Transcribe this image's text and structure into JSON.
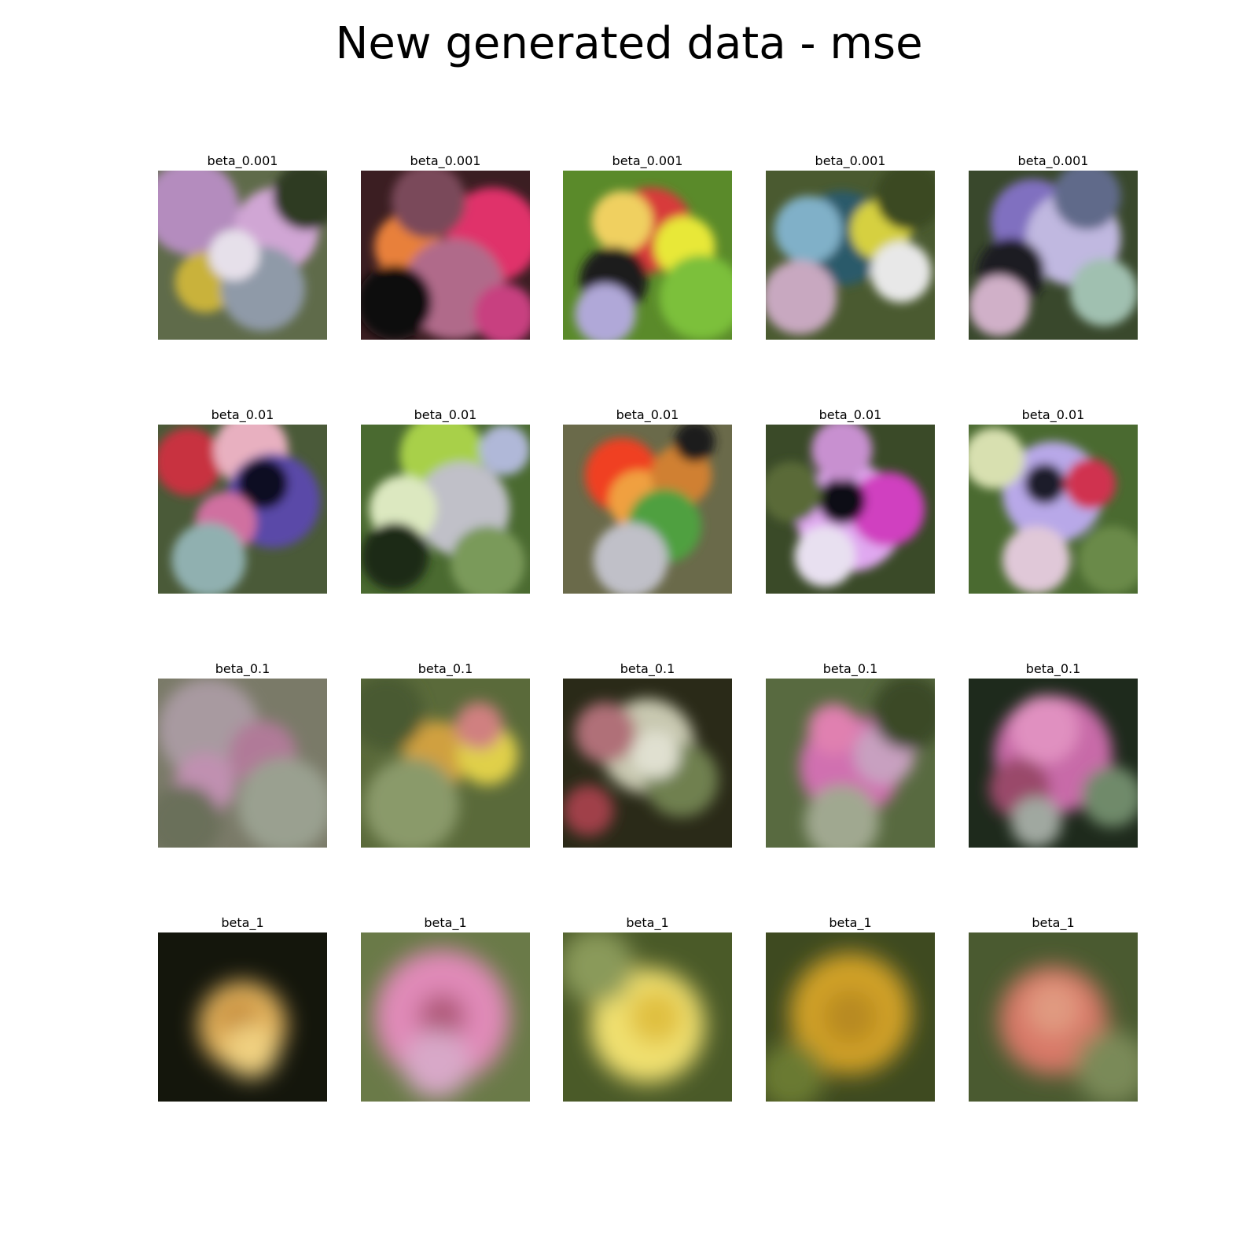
{
  "figure": {
    "title": "New generated data - mse"
  },
  "rows": [
    {
      "label": "beta_0.001",
      "images": [
        {
          "title": "beta_0.001",
          "bg": "#5f6b4a",
          "blobs": [
            [
              "#b48cbe",
              0.2,
              0.22,
              0.28
            ],
            [
              "#d0a6d4",
              0.7,
              0.35,
              0.25
            ],
            [
              "#c9b23a",
              0.28,
              0.66,
              0.18
            ],
            [
              "#8f9aa8",
              0.62,
              0.7,
              0.25
            ],
            [
              "#2f3b22",
              0.88,
              0.15,
              0.2
            ],
            [
              "#e6e0ea",
              0.45,
              0.5,
              0.15
            ]
          ]
        },
        {
          "title": "beta_0.001",
          "bg": "#3b1e22",
          "blobs": [
            [
              "#e0306a",
              0.78,
              0.38,
              0.28
            ],
            [
              "#e8803a",
              0.28,
              0.45,
              0.2
            ],
            [
              "#b06a8a",
              0.55,
              0.7,
              0.3
            ],
            [
              "#0b0b0b",
              0.2,
              0.78,
              0.22
            ],
            [
              "#7a4a5a",
              0.4,
              0.18,
              0.22
            ],
            [
              "#c84080",
              0.85,
              0.85,
              0.18
            ]
          ]
        },
        {
          "title": "beta_0.001",
          "bg": "#5a8a2a",
          "blobs": [
            [
              "#d83a3a",
              0.52,
              0.35,
              0.25
            ],
            [
              "#f0d060",
              0.35,
              0.3,
              0.18
            ],
            [
              "#e8e838",
              0.72,
              0.45,
              0.18
            ],
            [
              "#1a1a1a",
              0.3,
              0.65,
              0.2
            ],
            [
              "#b0a8d8",
              0.25,
              0.85,
              0.18
            ],
            [
              "#7cc03a",
              0.82,
              0.75,
              0.25
            ]
          ]
        },
        {
          "title": "beta_0.001",
          "bg": "#4a5a30",
          "blobs": [
            [
              "#2a5a6a",
              0.45,
              0.4,
              0.28
            ],
            [
              "#80b0c8",
              0.25,
              0.35,
              0.2
            ],
            [
              "#d6d040",
              0.68,
              0.35,
              0.18
            ],
            [
              "#c8a8c0",
              0.2,
              0.75,
              0.22
            ],
            [
              "#e8e8e8",
              0.8,
              0.6,
              0.18
            ],
            [
              "#3a4a22",
              0.85,
              0.15,
              0.2
            ]
          ]
        },
        {
          "title": "beta_0.001",
          "bg": "#39482c",
          "blobs": [
            [
              "#8070c0",
              0.38,
              0.3,
              0.25
            ],
            [
              "#c0b8e0",
              0.62,
              0.4,
              0.28
            ],
            [
              "#1a1a20",
              0.25,
              0.6,
              0.2
            ],
            [
              "#d0b0c8",
              0.18,
              0.8,
              0.18
            ],
            [
              "#a0c0b0",
              0.8,
              0.72,
              0.2
            ],
            [
              "#606a8a",
              0.7,
              0.15,
              0.2
            ]
          ]
        }
      ]
    },
    {
      "label": "beta_0.01",
      "images": [
        {
          "title": "beta_0.01",
          "bg": "#4a5a38",
          "blobs": [
            [
              "#c83040",
              0.18,
              0.22,
              0.2
            ],
            [
              "#e8b0c0",
              0.55,
              0.15,
              0.22
            ],
            [
              "#5a4aa8",
              0.68,
              0.45,
              0.28
            ],
            [
              "#101020",
              0.62,
              0.35,
              0.15
            ],
            [
              "#d070a0",
              0.4,
              0.58,
              0.18
            ],
            [
              "#90b0b0",
              0.3,
              0.8,
              0.22
            ]
          ]
        },
        {
          "title": "beta_0.01",
          "bg": "#4a6a30",
          "blobs": [
            [
              "#a8d048",
              0.48,
              0.18,
              0.25
            ],
            [
              "#c0c0c8",
              0.6,
              0.5,
              0.28
            ],
            [
              "#dce8c0",
              0.25,
              0.5,
              0.2
            ],
            [
              "#1a2a18",
              0.2,
              0.78,
              0.2
            ],
            [
              "#b0b8d8",
              0.85,
              0.15,
              0.15
            ],
            [
              "#7a9a5a",
              0.75,
              0.82,
              0.22
            ]
          ]
        },
        {
          "title": "beta_0.01",
          "bg": "#6a6a4a",
          "blobs": [
            [
              "#f04020",
              0.35,
              0.3,
              0.22
            ],
            [
              "#f0a040",
              0.45,
              0.45,
              0.18
            ],
            [
              "#d08030",
              0.7,
              0.3,
              0.18
            ],
            [
              "#50a040",
              0.6,
              0.6,
              0.22
            ],
            [
              "#c0c0c8",
              0.4,
              0.8,
              0.22
            ],
            [
              "#1a1a1a",
              0.78,
              0.1,
              0.12
            ]
          ]
        },
        {
          "title": "beta_0.01",
          "bg": "#3a4a28",
          "blobs": [
            [
              "#e0a8f0",
              0.5,
              0.55,
              0.32
            ],
            [
              "#d040c0",
              0.72,
              0.5,
              0.22
            ],
            [
              "#101018",
              0.45,
              0.45,
              0.14
            ],
            [
              "#c890d0",
              0.45,
              0.15,
              0.18
            ],
            [
              "#e8e0f0",
              0.35,
              0.78,
              0.18
            ],
            [
              "#5a6a38",
              0.15,
              0.4,
              0.18
            ]
          ]
        },
        {
          "title": "beta_0.01",
          "bg": "#4a6a30",
          "blobs": [
            [
              "#b8a8e8",
              0.5,
              0.4,
              0.3
            ],
            [
              "#d03050",
              0.72,
              0.35,
              0.15
            ],
            [
              "#1a1a2a",
              0.45,
              0.35,
              0.12
            ],
            [
              "#d8e0b0",
              0.15,
              0.2,
              0.18
            ],
            [
              "#e0c8d8",
              0.4,
              0.8,
              0.2
            ],
            [
              "#6a8a48",
              0.85,
              0.8,
              0.2
            ]
          ]
        }
      ]
    },
    {
      "label": "beta_0.1",
      "images": [
        {
          "title": "beta_0.1",
          "bg": "#7a7a68",
          "blobs": [
            [
              "#a89aa0",
              0.3,
              0.3,
              0.3
            ],
            [
              "#b07a98",
              0.62,
              0.45,
              0.2
            ],
            [
              "#c090b0",
              0.28,
              0.62,
              0.18
            ],
            [
              "#9aa090",
              0.75,
              0.75,
              0.28
            ],
            [
              "#6a705a",
              0.15,
              0.85,
              0.22
            ]
          ]
        },
        {
          "title": "beta_0.1",
          "bg": "#5a6a3a",
          "blobs": [
            [
              "#d0a040",
              0.45,
              0.45,
              0.2
            ],
            [
              "#e0d048",
              0.75,
              0.45,
              0.18
            ],
            [
              "#d08080",
              0.7,
              0.28,
              0.14
            ],
            [
              "#8a9a6a",
              0.3,
              0.75,
              0.28
            ],
            [
              "#4a5a30",
              0.15,
              0.2,
              0.22
            ]
          ]
        },
        {
          "title": "beta_0.1",
          "bg": "#2a2a18",
          "blobs": [
            [
              "#c8c8b0",
              0.5,
              0.4,
              0.28
            ],
            [
              "#b07078",
              0.25,
              0.32,
              0.18
            ],
            [
              "#708050",
              0.7,
              0.6,
              0.22
            ],
            [
              "#a04048",
              0.15,
              0.78,
              0.15
            ],
            [
              "#e0e0d0",
              0.55,
              0.45,
              0.14
            ]
          ]
        },
        {
          "title": "beta_0.1",
          "bg": "#586a40",
          "blobs": [
            [
              "#d070b0",
              0.5,
              0.52,
              0.3
            ],
            [
              "#e080b0",
              0.4,
              0.3,
              0.15
            ],
            [
              "#c8a0c0",
              0.7,
              0.45,
              0.18
            ],
            [
              "#a0a890",
              0.45,
              0.85,
              0.22
            ],
            [
              "#3a4a28",
              0.85,
              0.2,
              0.22
            ]
          ]
        },
        {
          "title": "beta_0.1",
          "bg": "#1e2a1c",
          "blobs": [
            [
              "#c86aa8",
              0.5,
              0.45,
              0.35
            ],
            [
              "#e090c0",
              0.45,
              0.3,
              0.2
            ],
            [
              "#9a4a6a",
              0.3,
              0.65,
              0.18
            ],
            [
              "#708a6a",
              0.85,
              0.7,
              0.18
            ],
            [
              "#a0a8a0",
              0.4,
              0.85,
              0.15
            ]
          ]
        }
      ]
    },
    {
      "label": "beta_1",
      "images": [
        {
          "title": "beta_1",
          "bg": "#14160c",
          "blobs": [
            [
              "#e8b860",
              0.5,
              0.55,
              0.26
            ],
            [
              "#c89040",
              0.48,
              0.52,
              0.14
            ],
            [
              "#f0d080",
              0.55,
              0.7,
              0.16
            ]
          ]
        },
        {
          "title": "beta_1",
          "bg": "#6a7a48",
          "blobs": [
            [
              "#e08ab8",
              0.48,
              0.5,
              0.4
            ],
            [
              "#b05a7a",
              0.48,
              0.5,
              0.14
            ],
            [
              "#d8a8c8",
              0.45,
              0.78,
              0.2
            ]
          ]
        },
        {
          "title": "beta_1",
          "bg": "#4a5a28",
          "blobs": [
            [
              "#f0e070",
              0.5,
              0.55,
              0.34
            ],
            [
              "#e0c040",
              0.55,
              0.5,
              0.16
            ],
            [
              "#8a9a5a",
              0.2,
              0.2,
              0.22
            ]
          ]
        },
        {
          "title": "beta_1",
          "bg": "#3e4a20",
          "blobs": [
            [
              "#d0a028",
              0.5,
              0.48,
              0.36
            ],
            [
              "#b88a20",
              0.5,
              0.5,
              0.16
            ],
            [
              "#6a7a30",
              0.15,
              0.85,
              0.2
            ]
          ]
        },
        {
          "title": "beta_1",
          "bg": "#4a5a30",
          "blobs": [
            [
              "#d87868",
              0.5,
              0.52,
              0.32
            ],
            [
              "#e09a80",
              0.5,
              0.45,
              0.16
            ],
            [
              "#7a8a58",
              0.85,
              0.8,
              0.22
            ]
          ]
        }
      ]
    }
  ]
}
